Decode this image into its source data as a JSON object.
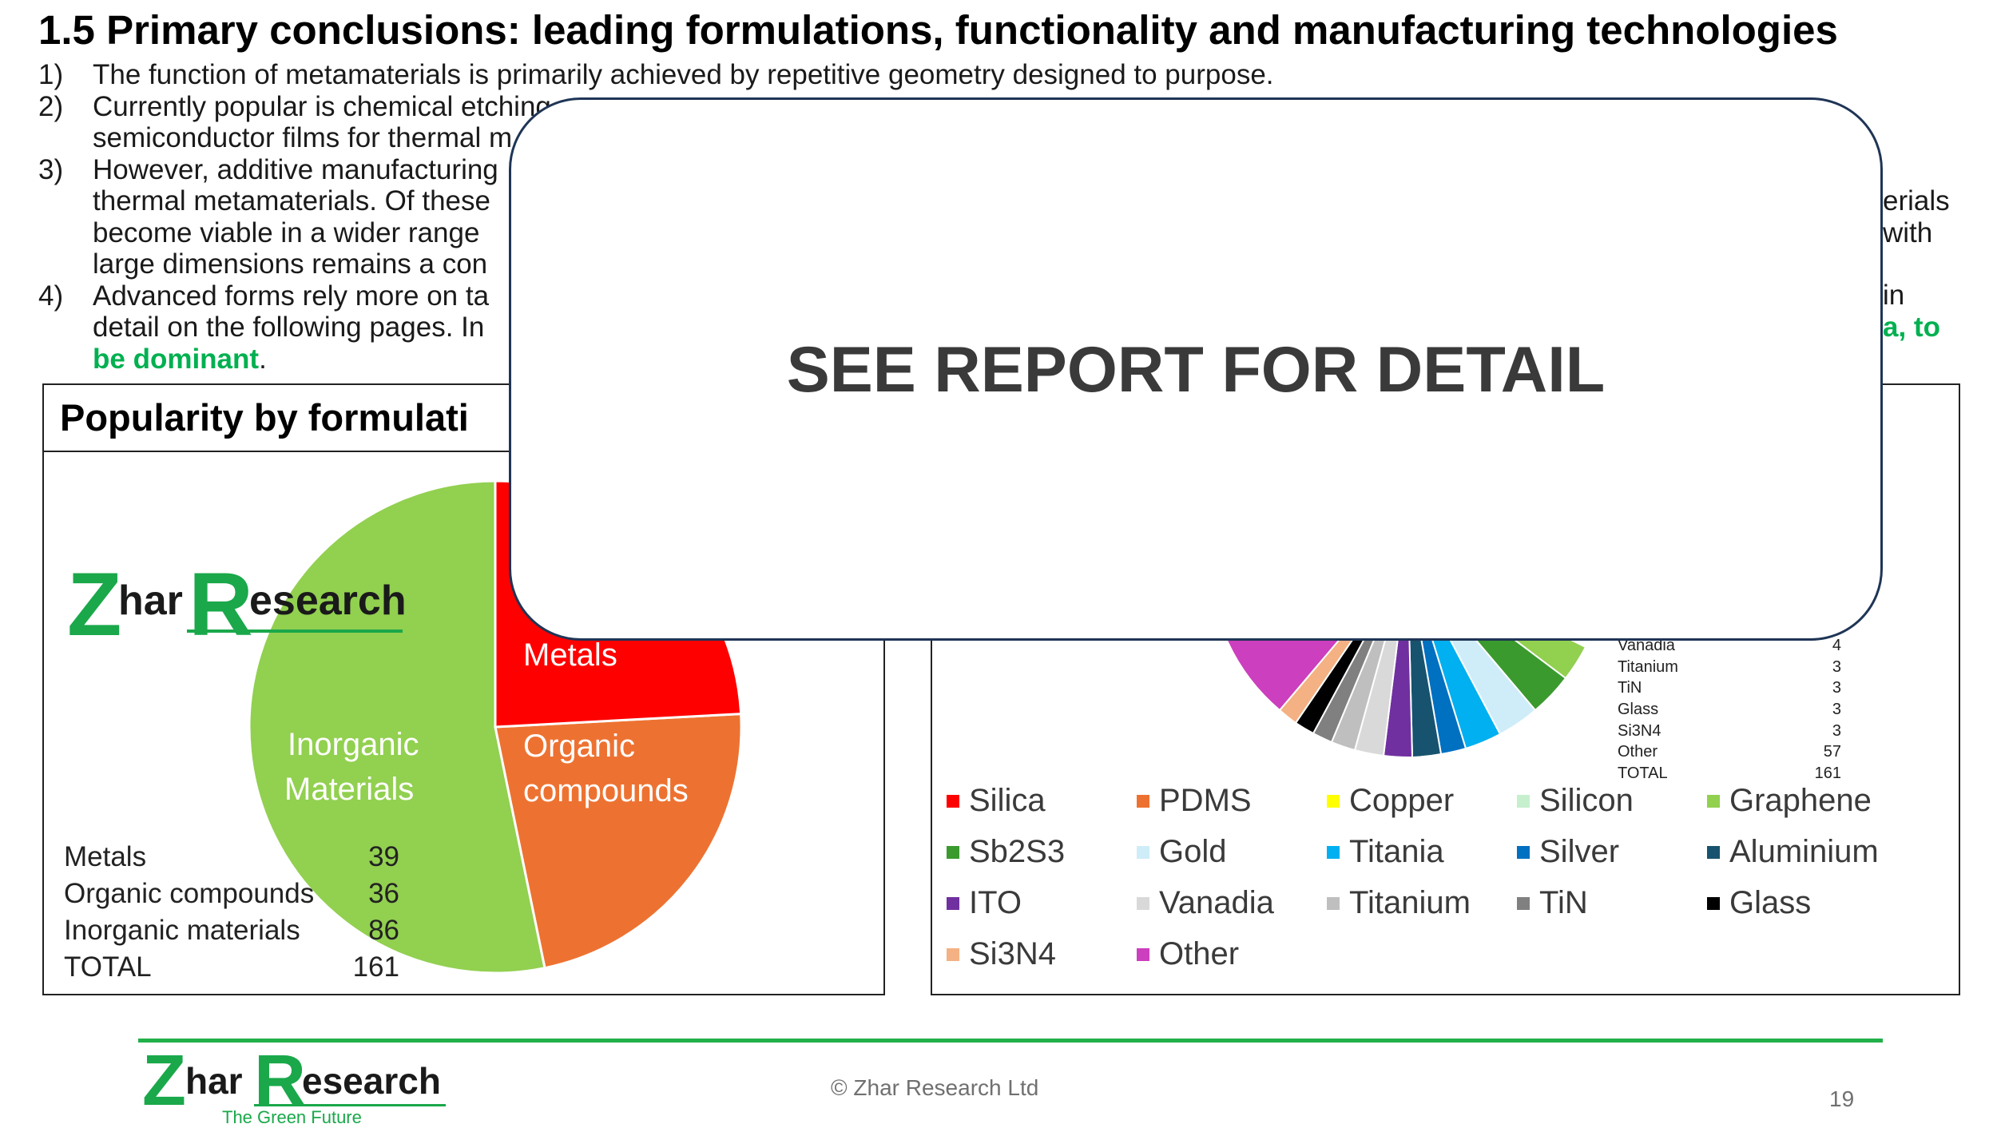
{
  "slide": {
    "title": "1.5 Primary conclusions: leading formulations, functionality and manufacturing technologies",
    "points": [
      {
        "num": "1)",
        "lines": [
          "The function of metamaterials is primarily achieved by repetitive geometry designed to purpose."
        ]
      },
      {
        "num": "2)",
        "lines": [
          "Currently popular is chemical etching",
          "semiconductor films for thermal m"
        ]
      },
      {
        "num": "3)",
        "lines": [
          "However, additive manufacturing",
          "thermal metamaterials. Of these",
          "become viable in a wider range",
          "large dimensions remains a con"
        ],
        "right_fragments": [
          "erials",
          "with"
        ]
      },
      {
        "num": "4)",
        "lines": [
          "Advanced forms rely more on ta",
          "detail on the following pages. In"
        ],
        "right_fragments": [
          "in",
          "a, to"
        ],
        "last_line": "be dominant",
        "last_line_end": "."
      }
    ]
  },
  "left_panel": {
    "title": "Popularity by formulati",
    "logo": {
      "z": "Z",
      "har": "har",
      "r": "R",
      "esearch": "esearch"
    },
    "pie_labels": {
      "metals": "Metals",
      "organic_1": "Organic",
      "organic_2": "compounds",
      "inorganic_1": "Inorganic",
      "inorganic_2": "Materials"
    },
    "table": [
      {
        "label": "Metals",
        "value": "39"
      },
      {
        "label": "Organic compounds",
        "value": "36"
      },
      {
        "label": "Inorganic materials",
        "value": "86"
      },
      {
        "label": "TOTAL",
        "value": "161"
      }
    ],
    "colors": {
      "metals": "#ff0000",
      "organic": "#ed7231",
      "inorganic": "#92d050"
    }
  },
  "right_panel": {
    "table": [
      {
        "label": "Vanadia",
        "value": "4"
      },
      {
        "label": "Titanium",
        "value": "3"
      },
      {
        "label": "TiN",
        "value": "3"
      },
      {
        "label": "Glass",
        "value": "3"
      },
      {
        "label": "Si3N4",
        "value": "3"
      },
      {
        "label": "Other",
        "value": "57"
      },
      {
        "label": "TOTAL",
        "value": "161"
      }
    ],
    "legend": [
      {
        "label": "Silica",
        "color": "#ff0000"
      },
      {
        "label": "PDMS",
        "color": "#ed7231"
      },
      {
        "label": "Copper",
        "color": "#ffff00"
      },
      {
        "label": "Silicon",
        "color": "#c6efce"
      },
      {
        "label": "Graphene",
        "color": "#92d050"
      },
      {
        "label": "Sb2S3",
        "color": "#3a9a2e"
      },
      {
        "label": "Gold",
        "color": "#cfecf9"
      },
      {
        "label": "Titania",
        "color": "#00b0f0"
      },
      {
        "label": "Silver",
        "color": "#0070c0"
      },
      {
        "label": "Aluminium",
        "color": "#17536e"
      },
      {
        "label": "ITO",
        "color": "#7030a0"
      },
      {
        "label": "Vanadia",
        "color": "#d9d9d9"
      },
      {
        "label": "Titanium",
        "color": "#bfbfbf"
      },
      {
        "label": "TiN",
        "color": "#808080"
      },
      {
        "label": "Glass",
        "color": "#000000"
      },
      {
        "label": "Si3N4",
        "color": "#f4b183"
      },
      {
        "label": "Other",
        "color": "#cc3fbe"
      }
    ]
  },
  "overlay": {
    "text": "SEE REPORT FOR DETAIL"
  },
  "footer": {
    "logo": {
      "z": "Z",
      "har": "har",
      "r": "R",
      "esearch": "esearch",
      "tagline": "The Green Future"
    },
    "copyright": "© Zhar Research Ltd",
    "page_number": "19"
  }
}
